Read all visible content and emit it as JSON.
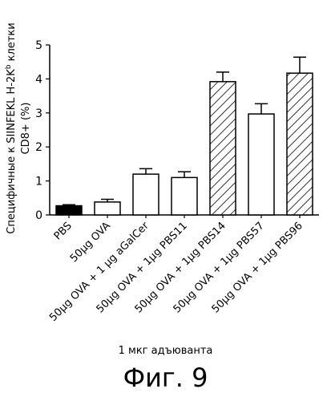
{
  "chart_data": {
    "type": "bar",
    "categories": [
      "PBS",
      "50µg OVA",
      "50µg OVA + 1 µg aGalCer",
      "50µg OVA + 1µg PBS11",
      "50µg OVA + 1µg PBS14",
      "50µg OVA + 1µg PBS57",
      "50µg OVA + 1µg PBS96"
    ],
    "values": [
      0.27,
      0.38,
      1.2,
      1.1,
      3.92,
      2.97,
      4.17
    ],
    "errors": [
      0.03,
      0.08,
      0.16,
      0.17,
      0.28,
      0.3,
      0.47
    ],
    "fills": [
      "solid",
      "open",
      "open",
      "open",
      "hatched",
      "open",
      "hatched"
    ],
    "ylim": [
      0,
      5
    ],
    "yticks": [
      "0",
      "1",
      "2",
      "3",
      "4",
      "5"
    ],
    "ylabel_line1": "Специфичные к SIINFEKL H-2K",
    "ylabel_sup": "b",
    "ylabel_line1_tail": " клетки",
    "ylabel_line2": "CD8+ (%)",
    "xlabel": "1 мкг адъюванта",
    "colors": {
      "solid": "#000000",
      "open": "#ffffff",
      "stroke": "#000000"
    }
  },
  "figure_caption": "Фиг. 9"
}
